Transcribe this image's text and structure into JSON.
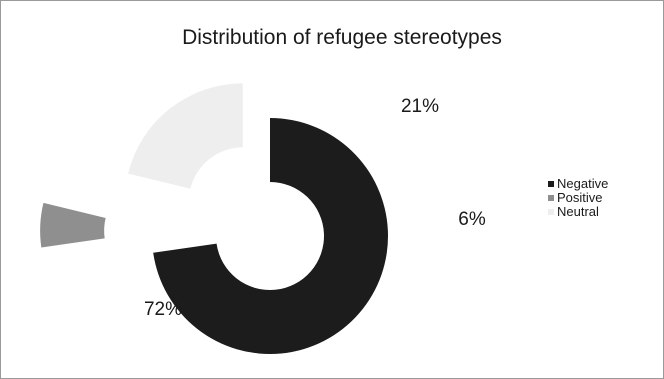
{
  "chart_data": {
    "type": "pie",
    "variant": "exploded-donut",
    "title": "Distribution of refugee stereotypes",
    "slices": [
      {
        "name": "Negative",
        "value": 72,
        "label": "72%",
        "color": "#1c1c1c",
        "exploded": false
      },
      {
        "name": "Positive",
        "value": 6,
        "label": "6%",
        "color": "#8f8f8f",
        "exploded": true
      },
      {
        "name": "Neutral",
        "value": 21,
        "label": "21%",
        "color": "#eeeeee",
        "exploded": true
      }
    ],
    "legend": {
      "position": "right",
      "items": [
        "Negative",
        "Positive",
        "Neutral"
      ]
    },
    "start_angle": "12 o'clock",
    "direction": "clockwise"
  }
}
